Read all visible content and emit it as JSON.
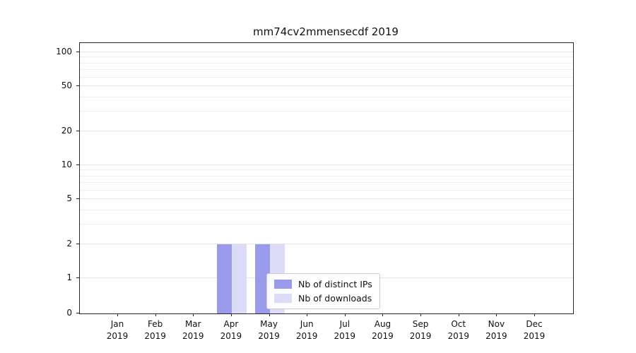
{
  "chart_data": {
    "type": "bar",
    "title": "mm74cv2mmensecdf 2019",
    "categories": [
      "Jan",
      "Feb",
      "Mar",
      "Apr",
      "May",
      "Jun",
      "Jul",
      "Aug",
      "Sep",
      "Oct",
      "Nov",
      "Dec"
    ],
    "year": "2019",
    "series": [
      {
        "name": "Nb of distinct IPs",
        "color": "#999bea",
        "values": [
          0,
          0,
          0,
          2,
          2,
          0,
          0,
          0,
          0,
          0,
          0,
          0
        ]
      },
      {
        "name": "Nb of downloads",
        "color": "#dcdcf9",
        "values": [
          0,
          0,
          0,
          2,
          2,
          0,
          0,
          0,
          0,
          0,
          0,
          0
        ]
      }
    ],
    "yticks": [
      0,
      1,
      2,
      5,
      10,
      20,
      50,
      100
    ],
    "yscale": "symlog",
    "ylim": [
      0,
      100
    ],
    "grid": "horizontal",
    "legend_position": "bottom-center"
  },
  "colors": {
    "grid_minor": "#efefef",
    "grid_major": "#e3e3e3",
    "axis": "#262626",
    "background": "#ffffff"
  }
}
